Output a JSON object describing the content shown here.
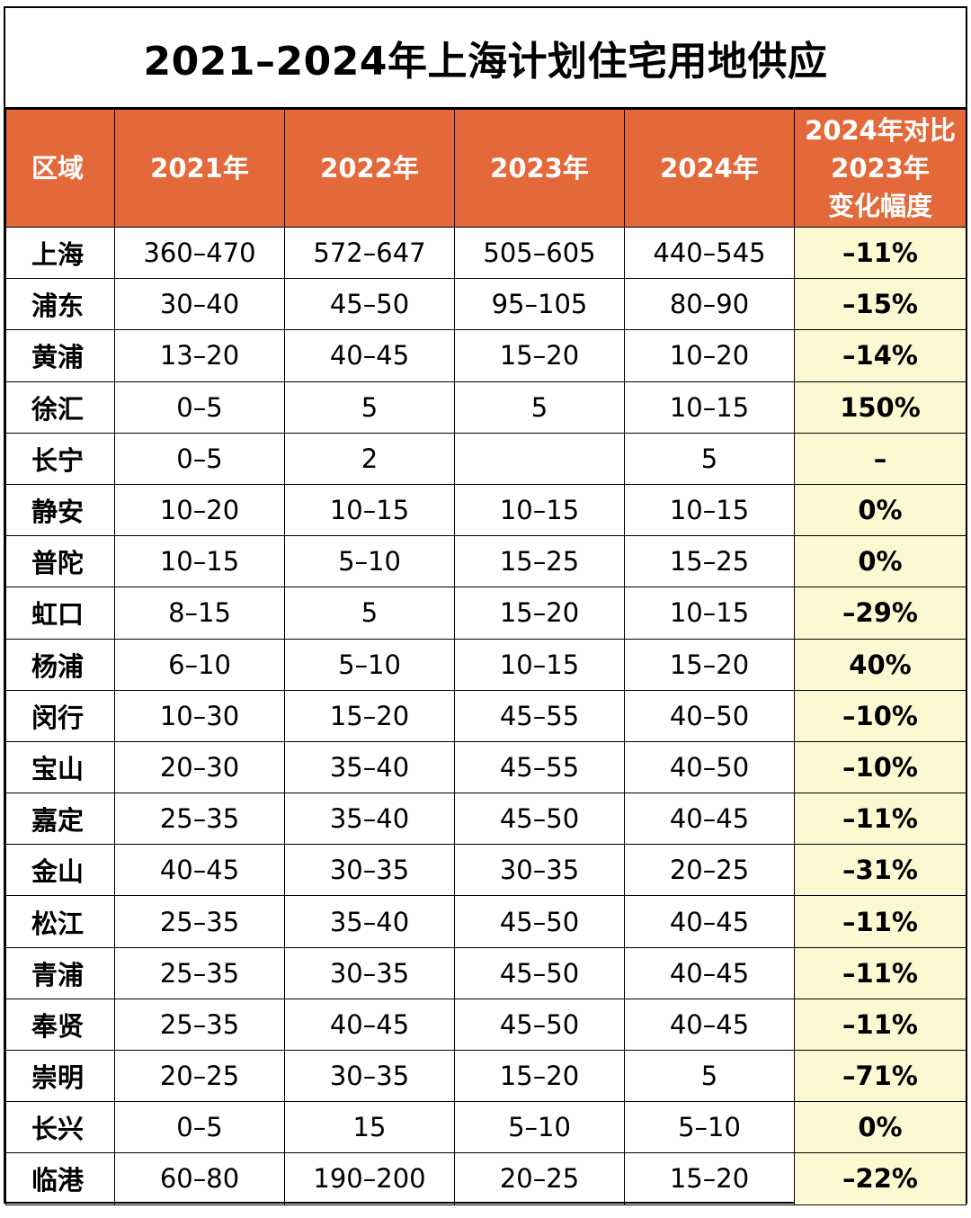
{
  "title": "2021–2024年上海计划住宅用地供应",
  "headers": [
    "区域",
    "2021年",
    "2022年",
    "2023年",
    "2024年",
    "2024年对比\n2023年\n变化幅度"
  ],
  "colors": {
    "header_bg": "#e4693a",
    "change_bg": "#fcf9d2"
  },
  "rows": [
    [
      "上海",
      "360–470",
      "572–647",
      "505–605",
      "440–545",
      "–11%"
    ],
    [
      "浦东",
      "30–40",
      "45–50",
      "95–105",
      "80–90",
      "–15%"
    ],
    [
      "黄浦",
      "13–20",
      "40–45",
      "15–20",
      "10–20",
      "–14%"
    ],
    [
      "徐汇",
      "0–5",
      "5",
      "5",
      "10–15",
      "150%"
    ],
    [
      "长宁",
      "0–5",
      "2",
      "",
      "5",
      "–"
    ],
    [
      "静安",
      "10–20",
      "10–15",
      "10–15",
      "10–15",
      "0%"
    ],
    [
      "普陀",
      "10–15",
      "5–10",
      "15–25",
      "15–25",
      "0%"
    ],
    [
      "虹口",
      "8–15",
      "5",
      "15–20",
      "10–15",
      "–29%"
    ],
    [
      "杨浦",
      "6–10",
      "5–10",
      "10–15",
      "15–20",
      "40%"
    ],
    [
      "闵行",
      "10–30",
      "15–20",
      "45–55",
      "40–50",
      "–10%"
    ],
    [
      "宝山",
      "20–30",
      "35–40",
      "45–55",
      "40–50",
      "–10%"
    ],
    [
      "嘉定",
      "25–35",
      "35–40",
      "45–50",
      "40–45",
      "–11%"
    ],
    [
      "金山",
      "40–45",
      "30–35",
      "30–35",
      "20–25",
      "–31%"
    ],
    [
      "松江",
      "25–35",
      "35–40",
      "45–50",
      "40–45",
      "–11%"
    ],
    [
      "青浦",
      "25–35",
      "30–35",
      "45–50",
      "40–45",
      "–11%"
    ],
    [
      "奉贤",
      "25–35",
      "40–45",
      "45–50",
      "40–45",
      "–11%"
    ],
    [
      "崇明",
      "20–25",
      "30–35",
      "15–20",
      "5",
      "–71%"
    ],
    [
      "长兴",
      "0–5",
      "15",
      "5–10",
      "5–10",
      "0%"
    ],
    [
      "临港",
      "60–80",
      "190–200",
      "20–25",
      "15–20",
      "–22%"
    ]
  ]
}
